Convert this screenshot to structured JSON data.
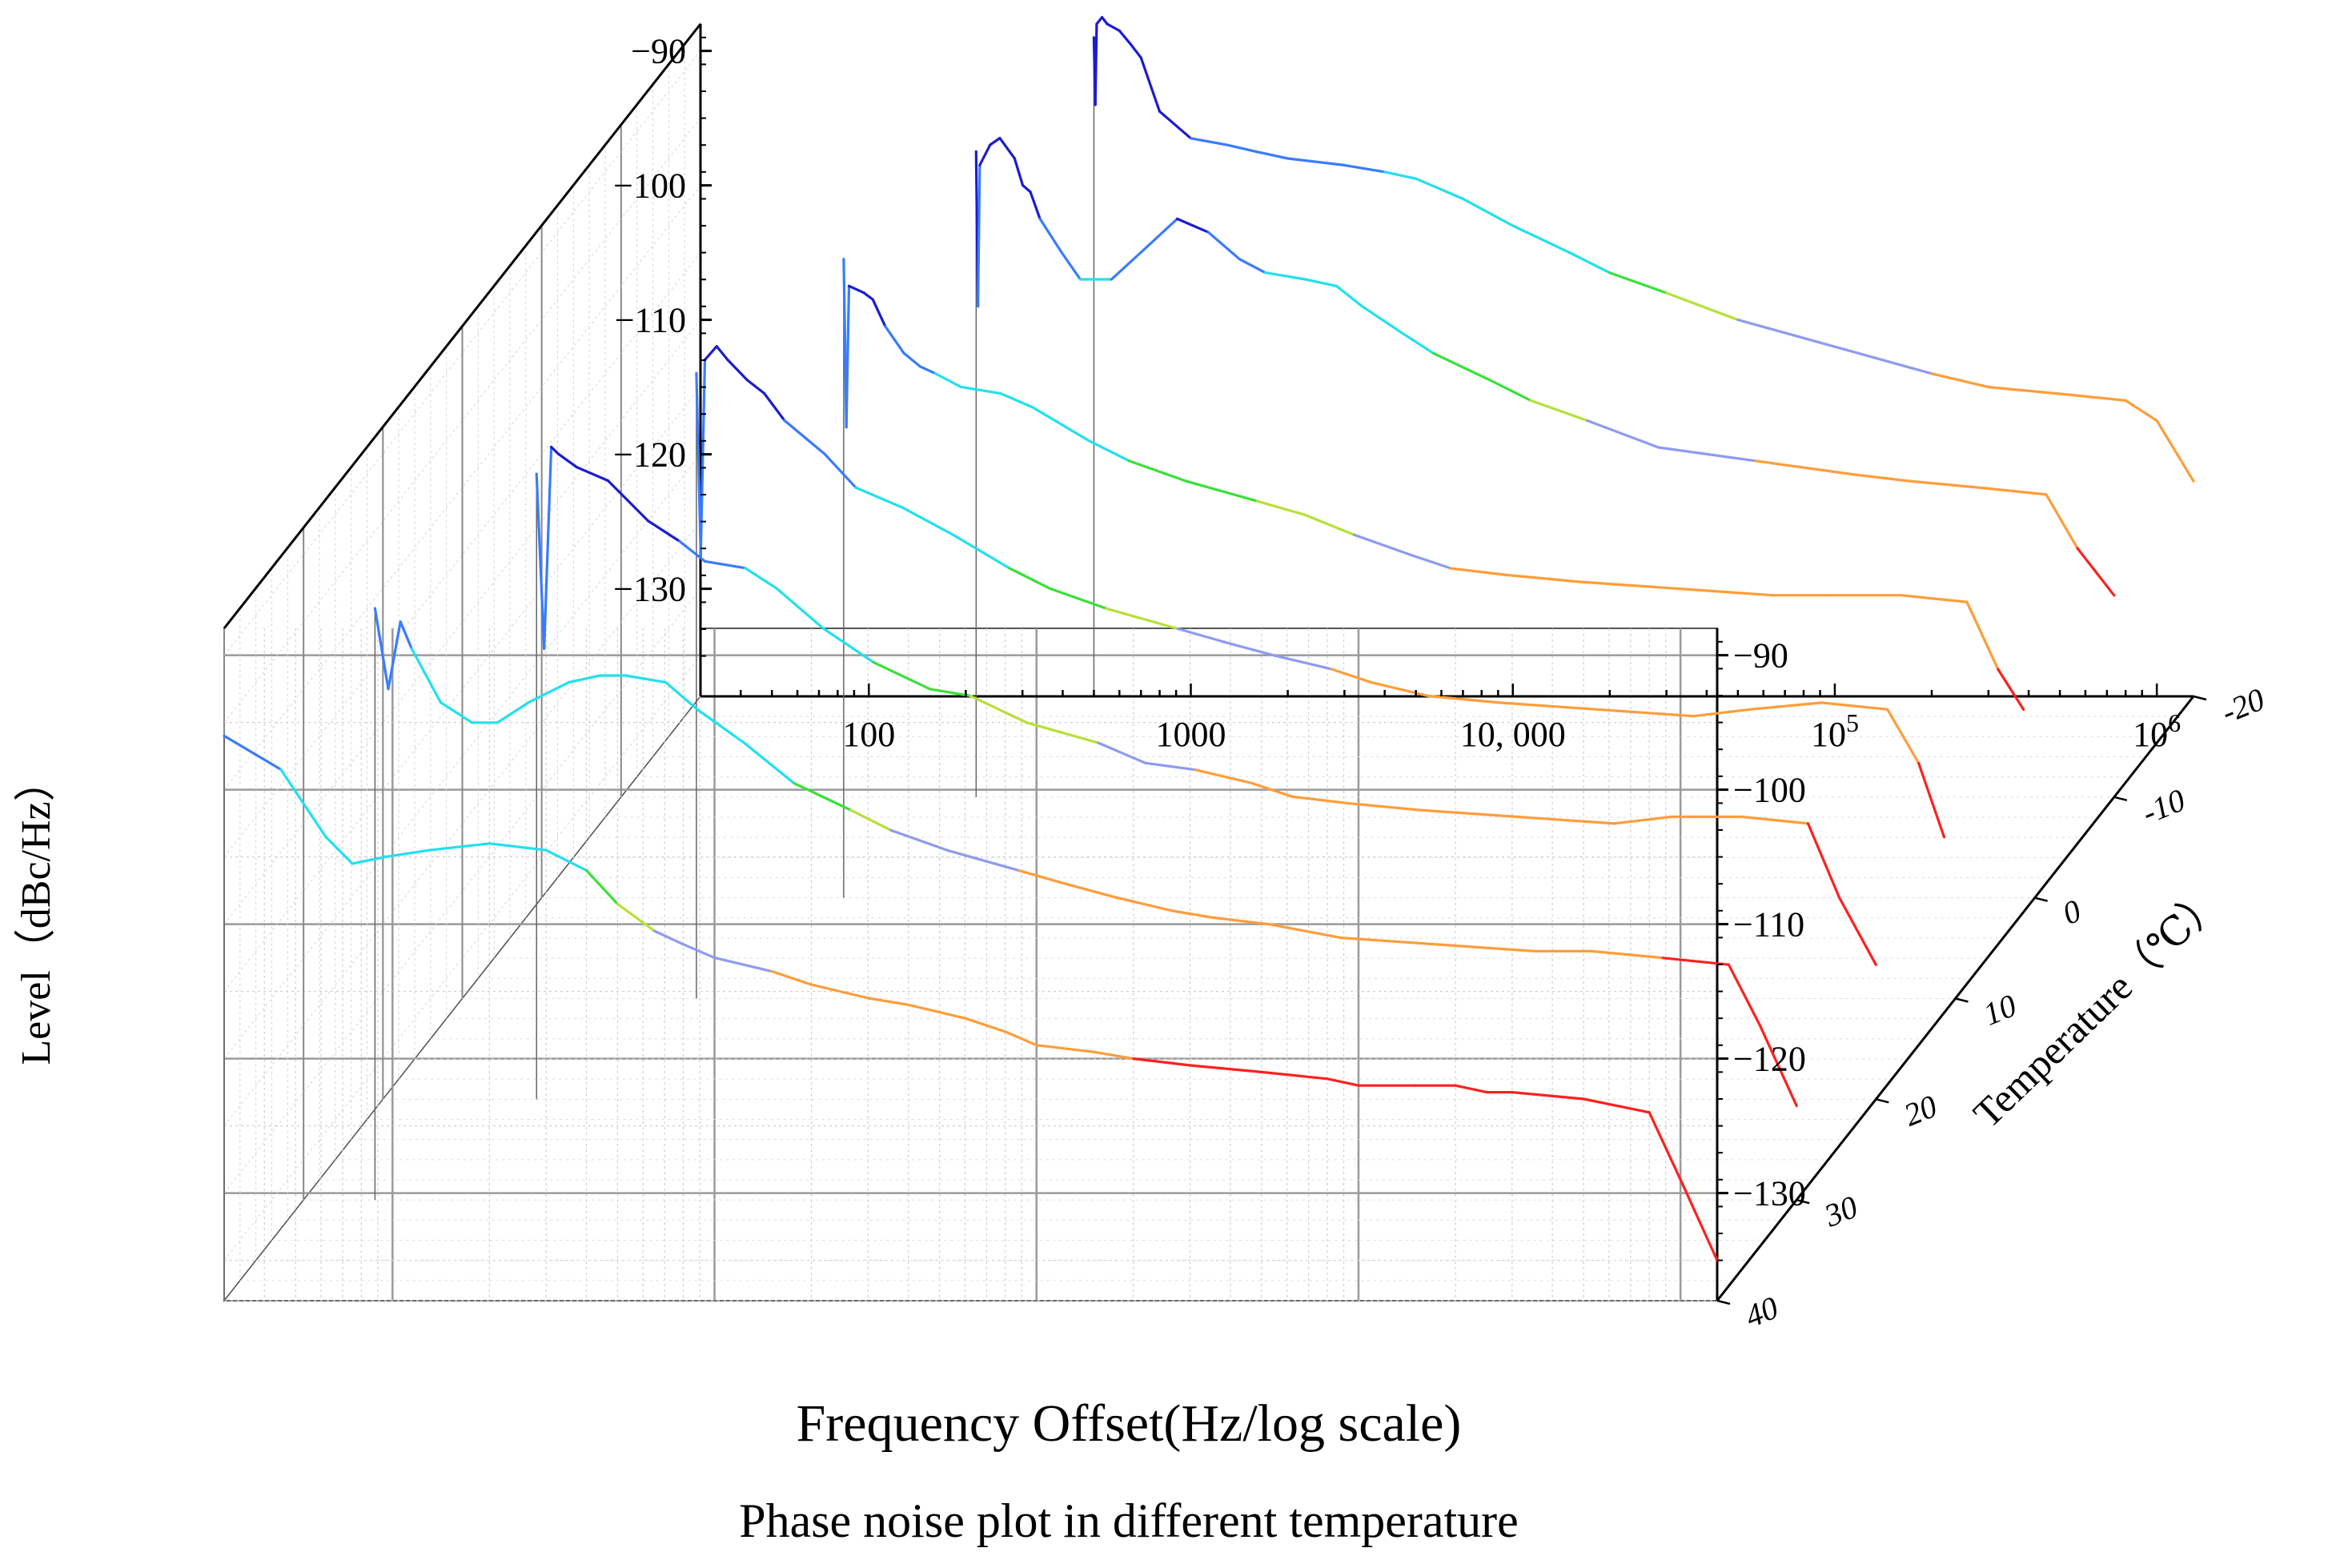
{
  "chart_data": {
    "type": "line",
    "projection": "3d-waterfall",
    "title": "Phase noise plot in different temperature",
    "xlabel": "Frequency Offset(Hz/log scale)",
    "ylabel": "Level（dBc/Hz）",
    "zlabel": "Temperature（℃）",
    "xscale": "log",
    "xlim": [
      30,
      1300000
    ],
    "ylim": [
      -138,
      -88
    ],
    "zlim": [
      -20,
      40
    ],
    "x_ticks": [
      {
        "value": 100,
        "label": "100"
      },
      {
        "value": 1000,
        "label": "1000"
      },
      {
        "value": 10000,
        "label": "10, 000"
      },
      {
        "value": 100000,
        "label": "10",
        "sup": "5"
      },
      {
        "value": 1000000,
        "label": "10",
        "sup": "6"
      }
    ],
    "y_ticks": [
      -90,
      -100,
      -110,
      -120,
      -130
    ],
    "z_ticks": [
      -20,
      -10,
      0,
      10,
      20,
      30,
      40
    ],
    "color_scale": [
      "#1c1cd0",
      "#3a7bff",
      "#22e0ee",
      "#3ae03a",
      "#b7e03a",
      "#8e9bf0",
      "#ff9d3a",
      "#ff2020"
    ],
    "series": [
      {
        "name": "40 ℃",
        "temperature": 40,
        "x": [
          30,
          45,
          62,
          75,
          95,
          130,
          200,
          300,
          400,
          500,
          650,
          800,
          1000,
          1500,
          2000,
          3000,
          4000,
          6000,
          8000,
          10000,
          15000,
          20000,
          30000,
          50000,
          80000,
          100000,
          150000,
          200000,
          250000,
          300000,
          500000,
          800000,
          1000000,
          1300000
        ],
        "y": [
          -96,
          -98.5,
          -103.5,
          -105.5,
          -105,
          -104.5,
          -104,
          -104.5,
          -106,
          -108.5,
          -110.5,
          -111.5,
          -112.5,
          -113.5,
          -114.5,
          -115.5,
          -116,
          -117,
          -118,
          -119,
          -119.5,
          -120,
          -120.5,
          -121,
          -121.5,
          -122,
          -122,
          -122,
          -122.5,
          -122.5,
          -123,
          -124,
          -129,
          -135
        ]
      },
      {
        "name": "30 ℃",
        "temperature": 30,
        "x": [
          50,
          55,
          60,
          65,
          80,
          100,
          120,
          150,
          200,
          250,
          300,
          400,
          500,
          700,
          1000,
          1500,
          2000,
          3000,
          5000,
          7000,
          10000,
          15000,
          20000,
          30000,
          50000,
          100000,
          200000,
          300000,
          500000,
          800000,
          1000000,
          1300000
        ],
        "y": [
          -94,
          -100,
          -95,
          -97,
          -101,
          -102.5,
          -102.5,
          -101,
          -99.5,
          -99,
          -99,
          -99.5,
          -101.5,
          -104,
          -107,
          -109,
          -110.5,
          -112,
          -113.5,
          -114.5,
          -115.5,
          -116.5,
          -117,
          -117.5,
          -118.5,
          -119,
          -119.5,
          -119.5,
          -120,
          -120.5,
          -125,
          -131
        ]
      },
      {
        "name": "20 ℃",
        "temperature": 20,
        "x": [
          90,
          95,
          100,
          105,
          120,
          150,
          200,
          250,
          300,
          400,
          500,
          700,
          1000,
          1500,
          2000,
          3000,
          5000,
          7000,
          10000,
          15000,
          20000,
          30000,
          50000,
          100000,
          200000,
          300000,
          500000,
          800000,
          1000000,
          1300000
        ],
        "y": [
          -91.5,
          -104.5,
          -89.5,
          -90,
          -91,
          -92,
          -95,
          -96.5,
          -98,
          -98.5,
          -100,
          -103,
          -105.5,
          -107.5,
          -108,
          -110,
          -111.5,
          -113,
          -113.5,
          -114.5,
          -115.5,
          -116,
          -116.5,
          -117,
          -117.5,
          -117,
          -117,
          -117.5,
          -123,
          -128
        ]
      },
      {
        "name": "10 ℃",
        "temperature": 10,
        "x": [
          160,
          165,
          170,
          185,
          200,
          230,
          260,
          300,
          400,
          500,
          700,
          1000,
          1500,
          2000,
          3000,
          5000,
          7000,
          10000,
          15000,
          20000,
          30000,
          50000,
          100000,
          200000,
          300000,
          500000,
          800000,
          1000000,
          1200000
        ],
        "y": [
          -91.5,
          -105,
          -90.5,
          -89.5,
          -90.5,
          -92,
          -93,
          -95,
          -97.5,
          -100,
          -101.5,
          -103.5,
          -106,
          -107.5,
          -109,
          -110.5,
          -111.5,
          -112.5,
          -113.5,
          -114.5,
          -115.5,
          -116,
          -116.5,
          -117,
          -116.5,
          -116,
          -116.5,
          -120.5,
          -126
        ]
      },
      {
        "name": "0 ℃",
        "temperature": 0,
        "x": [
          260,
          265,
          270,
          300,
          320,
          350,
          400,
          450,
          500,
          600,
          800,
          1000,
          1500,
          2000,
          3000,
          5000,
          7000,
          10000,
          15000,
          20000,
          30000,
          50000,
          100000,
          200000,
          300000,
          500000,
          800000,
          1000000,
          1200000
        ],
        "y": [
          -90.5,
          -103,
          -92.5,
          -93,
          -93.5,
          -95.5,
          -97.5,
          -98.5,
          -99,
          -100,
          -100.5,
          -101.5,
          -104,
          -105.5,
          -107,
          -108.5,
          -109.5,
          -111,
          -112.5,
          -113.5,
          -114,
          -114.5,
          -115,
          -115.5,
          -115.5,
          -115.5,
          -116,
          -121,
          -124
        ]
      },
      {
        "name": "-10 ℃",
        "temperature": -10,
        "x": [
          380,
          385,
          390,
          420,
          450,
          500,
          530,
          560,
          600,
          700,
          800,
          1000,
          1300,
          1600,
          2000,
          2500,
          3000,
          4000,
          5000,
          6000,
          8000,
          10000,
          15000,
          20000,
          30000,
          50000,
          100000,
          200000,
          300000,
          500000,
          800000,
          1000000,
          1300000
        ],
        "y": [
          -90,
          -101.5,
          -91,
          -89.5,
          -89,
          -90.5,
          -92.5,
          -93,
          -95,
          -97.5,
          -99.5,
          -99.5,
          -97,
          -95,
          -96,
          -98,
          -99,
          -99.5,
          -100,
          -101.5,
          -103.5,
          -105,
          -107,
          -108.5,
          -110,
          -112,
          -113,
          -114,
          -114.5,
          -115,
          -115.5,
          -119.5,
          -123
        ]
      },
      {
        "name": "-20 ℃",
        "temperature": -20,
        "x": [
          500,
          505,
          510,
          530,
          550,
          600,
          650,
          700,
          800,
          1000,
          1300,
          1600,
          2000,
          3000,
          4000,
          5000,
          7000,
          10000,
          15000,
          20000,
          30000,
          50000,
          100000,
          200000,
          300000,
          500000,
          800000,
          1000000,
          1300000
        ],
        "y": [
          -89,
          -94,
          -88,
          -87.5,
          -88,
          -88.5,
          -89.5,
          -90.5,
          -94.5,
          -96.5,
          -97,
          -97.5,
          -98,
          -98.5,
          -99,
          -99.5,
          -101,
          -103,
          -105,
          -106.5,
          -108,
          -110,
          -112,
          -114,
          -115,
          -115.5,
          -116,
          -117.5,
          -122
        ]
      }
    ]
  }
}
